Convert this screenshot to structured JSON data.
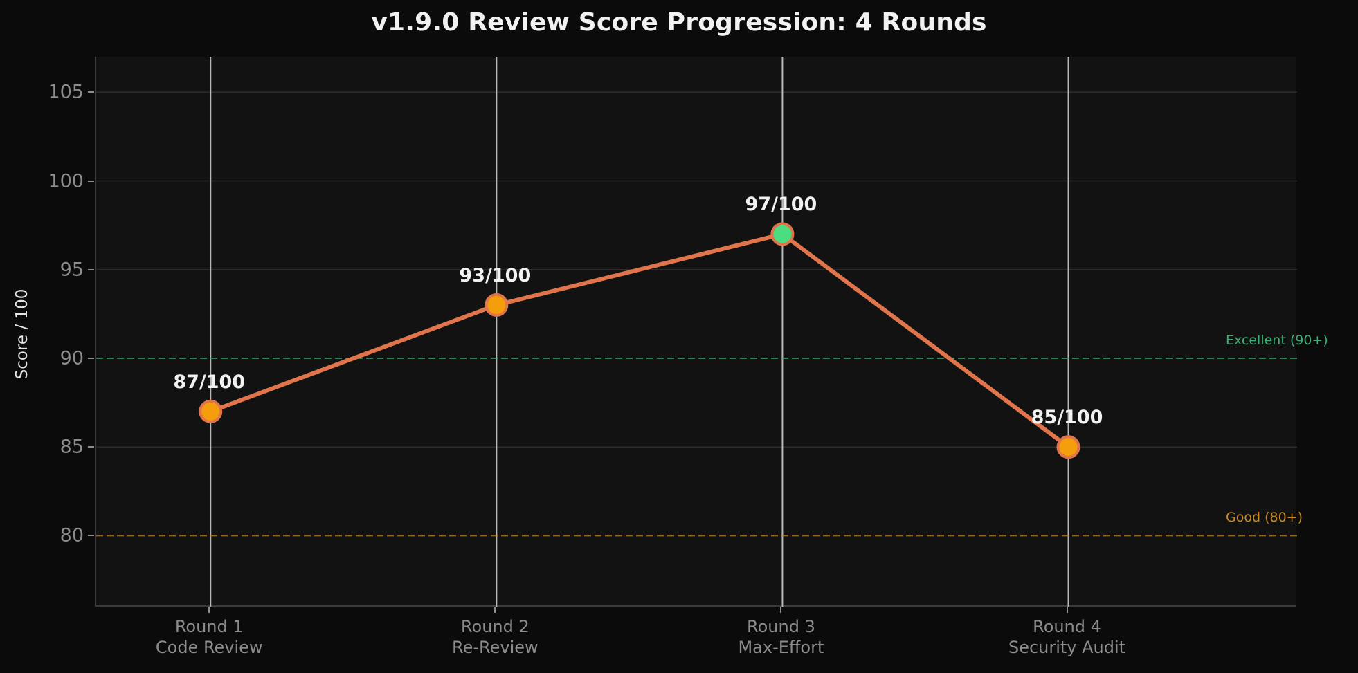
{
  "chart_data": {
    "type": "line",
    "title": "v1.9.0 Review Score Progression: 4 Rounds",
    "xlabel": "",
    "ylabel": "Score / 100",
    "categories": [
      "Round 1\nCode Review",
      "Round 2\nRe-Review",
      "Round 3\nMax-Effort",
      "Round 4\nSecurity Audit"
    ],
    "category_lines": [
      [
        "Round 1",
        "Code Review"
      ],
      [
        "Round 2",
        "Re-Review"
      ],
      [
        "Round 3",
        "Max-Effort"
      ],
      [
        "Round 4",
        "Security Audit"
      ]
    ],
    "series": [
      {
        "name": "Score",
        "values": [
          87,
          93,
          97,
          85
        ],
        "labels": [
          "87/100",
          "93/100",
          "97/100",
          "85/100"
        ],
        "line_color": "#e0744a",
        "marker_colors": [
          "#f59e0b",
          "#f59e0b",
          "#4ade80",
          "#f59e0b"
        ],
        "marker_edge_color": "#e0744a"
      }
    ],
    "reference_lines": [
      {
        "y": 90,
        "label": "Excellent (90+)",
        "color": "#3fae72"
      },
      {
        "y": 80,
        "label": "Good (80+)",
        "color": "#c9891f"
      }
    ],
    "yticks": [
      80,
      85,
      90,
      95,
      100,
      105
    ],
    "ylim": [
      76,
      107
    ],
    "xlim": [
      -0.4,
      3.8
    ],
    "grid": "horizontal",
    "legend": "none"
  }
}
